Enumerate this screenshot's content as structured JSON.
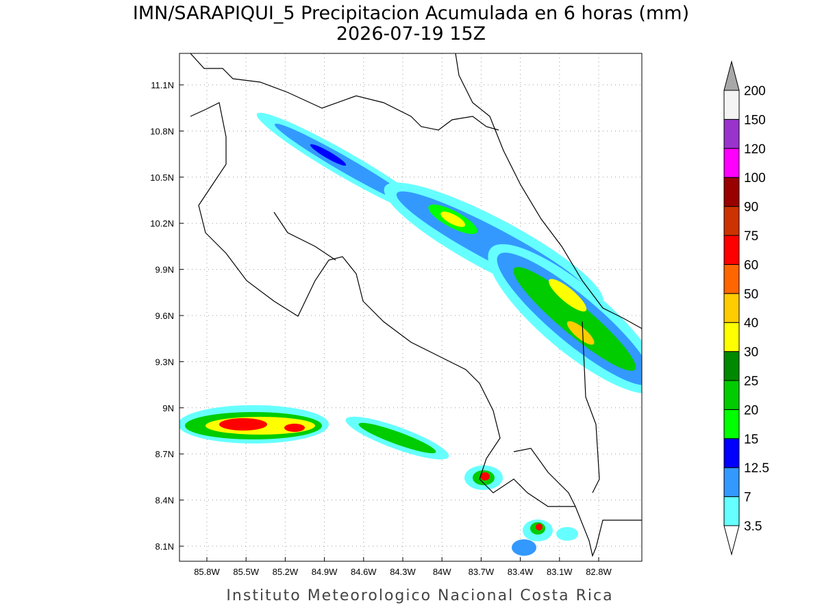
{
  "header": {
    "title": "IMN/SARAPIQUI_5 Precipitacion Acumulada en 6 horas (mm)",
    "subtitle": "2026-07-19 15Z"
  },
  "map": {
    "xticks": [
      "85.8W",
      "85.5W",
      "85.2W",
      "84.9W",
      "84.6W",
      "84.3W",
      "84W",
      "83.7W",
      "83.4W",
      "83.1W",
      "82.8W"
    ],
    "yticks": [
      "11.1N",
      "10.8N",
      "10.5N",
      "10.2N",
      "9.9N",
      "9.6N",
      "9.3N",
      "9N",
      "8.7N",
      "8.4N",
      "8.1N"
    ]
  },
  "colorbar": {
    "levels": [
      3.5,
      7,
      12.5,
      15,
      20,
      25,
      30,
      40,
      50,
      60,
      75,
      90,
      100,
      120,
      150,
      200
    ],
    "colors": [
      "#66ffff",
      "#3399ff",
      "#0000ff",
      "#00ff00",
      "#00cc00",
      "#008800",
      "#ffff00",
      "#ffcc00",
      "#ff6600",
      "#ff0000",
      "#cc3300",
      "#990000",
      "#ff00ff",
      "#9933cc",
      "#f4f4f4"
    ],
    "under_color": "#ffffff",
    "over_color": "#a8a8a8"
  },
  "footer": "Instituto Meteorologico Nacional Costa Rica"
}
